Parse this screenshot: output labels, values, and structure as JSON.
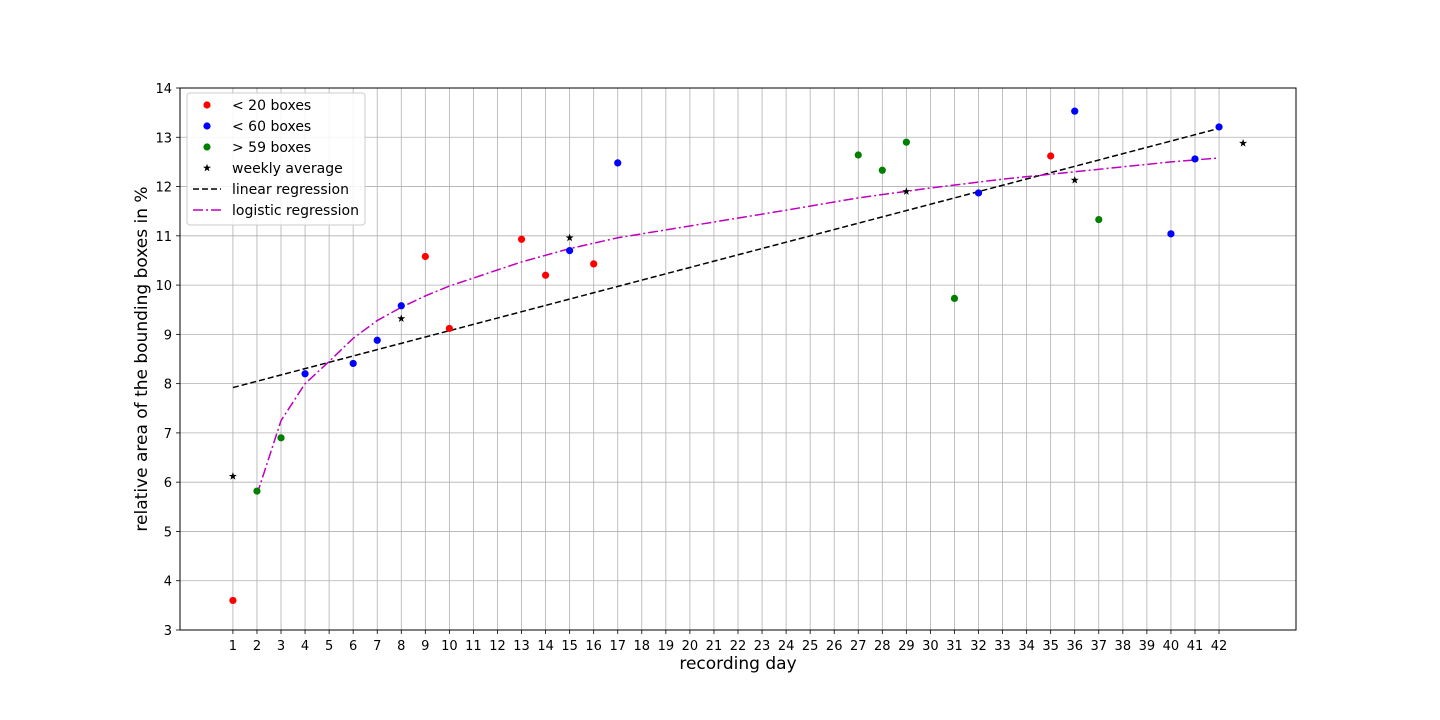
{
  "chart_data": {
    "type": "scatter",
    "title": "",
    "xlabel": "recording day",
    "ylabel": "relative area of the bounding boxes in %",
    "xlim": [
      -1.2,
      45.2
    ],
    "ylim": [
      3,
      14
    ],
    "x_ticks": [
      1,
      2,
      3,
      4,
      5,
      6,
      7,
      8,
      9,
      10,
      11,
      12,
      13,
      14,
      15,
      16,
      17,
      18,
      19,
      20,
      21,
      22,
      23,
      24,
      25,
      26,
      27,
      28,
      29,
      30,
      31,
      32,
      33,
      34,
      35,
      36,
      37,
      38,
      39,
      40,
      41,
      42
    ],
    "y_ticks": [
      3,
      4,
      5,
      6,
      7,
      8,
      9,
      10,
      11,
      12,
      13,
      14
    ],
    "grid": true,
    "legend_position": "top-left",
    "series": [
      {
        "name": "< 20 boxes",
        "kind": "points",
        "marker": "circle",
        "color": "#ff0000",
        "x": [
          1,
          9,
          10,
          13,
          14,
          16,
          35
        ],
        "y": [
          3.6,
          10.58,
          9.12,
          10.93,
          10.2,
          10.43,
          12.62
        ]
      },
      {
        "name": "< 60 boxes",
        "kind": "points",
        "marker": "circle",
        "color": "#0000ff",
        "x": [
          4,
          6,
          7,
          8,
          15,
          17,
          32,
          36,
          40,
          41,
          42
        ],
        "y": [
          8.2,
          8.41,
          8.88,
          9.58,
          10.7,
          12.48,
          11.87,
          13.53,
          11.04,
          12.56,
          13.21
        ]
      },
      {
        "name": "> 59 boxes",
        "kind": "points",
        "marker": "circle",
        "color": "#008000",
        "x": [
          2,
          3,
          27,
          28,
          29,
          31,
          37
        ],
        "y": [
          5.82,
          6.9,
          12.64,
          12.33,
          12.9,
          9.73,
          11.33
        ]
      },
      {
        "name": "weekly average",
        "kind": "points",
        "marker": "star",
        "color": "#000000",
        "x": [
          1,
          8,
          15,
          29,
          36,
          43
        ],
        "y": [
          6.12,
          9.32,
          10.96,
          11.9,
          12.13,
          12.88
        ]
      },
      {
        "name": "linear regression",
        "kind": "line",
        "style": "dashed",
        "color": "#000000",
        "x": [
          1,
          42
        ],
        "y": [
          7.92,
          13.18
        ]
      },
      {
        "name": "logistic regression",
        "kind": "line",
        "style": "dashdot",
        "color": "#bf00bf",
        "x": [
          2,
          3,
          4,
          5,
          6,
          7,
          8,
          9,
          10,
          13,
          15,
          17,
          20,
          24,
          27,
          30,
          33,
          36,
          38,
          40,
          42
        ],
        "y": [
          5.75,
          7.25,
          8.0,
          8.45,
          8.92,
          9.28,
          9.55,
          9.78,
          9.98,
          10.47,
          10.74,
          10.96,
          11.2,
          11.52,
          11.77,
          11.97,
          12.15,
          12.3,
          12.4,
          12.5,
          12.58
        ]
      }
    ]
  }
}
